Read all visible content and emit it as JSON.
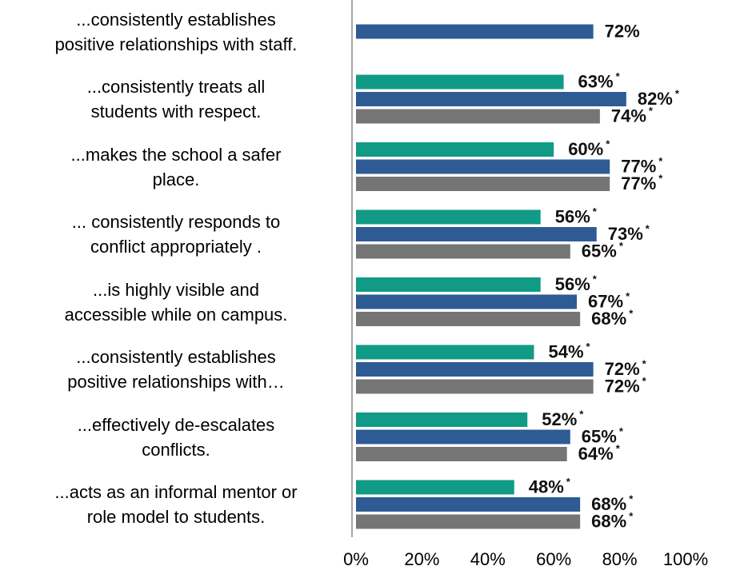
{
  "chart_data": {
    "type": "barh",
    "categories": [
      "...consistently establishes\npositive relationships with staff.",
      "...consistently treats all\nstudents with respect.",
      "...makes the school a safer\nplace.",
      "... consistently responds to\nconflict appropriately .",
      "...is highly visible and\naccessible while on campus.",
      "...consistently establishes\npositive relationships with…",
      "...effectively de-escalates\nconflicts.",
      "...acts as an informal mentor or\nrole model to  students."
    ],
    "series": [
      {
        "color": "#119a86",
        "values": [
          null,
          63,
          60,
          56,
          56,
          54,
          52,
          48
        ],
        "value_labels": [
          null,
          "63%",
          "60%",
          "56%",
          "56%",
          "54%",
          "52%",
          "48%"
        ],
        "flags": [
          null,
          "*",
          "*",
          "*",
          "*",
          "*",
          "*",
          "*"
        ]
      },
      {
        "color": "#2e5b94",
        "values": [
          72,
          82,
          77,
          73,
          67,
          72,
          65,
          68
        ],
        "value_labels": [
          "72%",
          "82%",
          "77%",
          "73%",
          "67%",
          "72%",
          "65%",
          "68%"
        ],
        "flags": [
          null,
          "*",
          "*",
          "*",
          "*",
          "*",
          "*",
          "*"
        ]
      },
      {
        "color": "#757575",
        "values": [
          null,
          74,
          77,
          65,
          68,
          72,
          64,
          68
        ],
        "value_labels": [
          null,
          "74%",
          "77%",
          "65%",
          "68%",
          "72%",
          "64%",
          "68%"
        ],
        "flags": [
          null,
          "*",
          "*",
          "*",
          "*",
          "*",
          "*",
          "*"
        ]
      }
    ],
    "xlim": [
      0,
      100
    ],
    "xticks": [
      {
        "value": 0,
        "label": "0%"
      },
      {
        "value": 20,
        "label": "20%"
      },
      {
        "value": 40,
        "label": "40%"
      },
      {
        "value": 60,
        "label": "60%"
      },
      {
        "value": 80,
        "label": "80%"
      },
      {
        "value": 100,
        "label": "100%"
      }
    ]
  }
}
